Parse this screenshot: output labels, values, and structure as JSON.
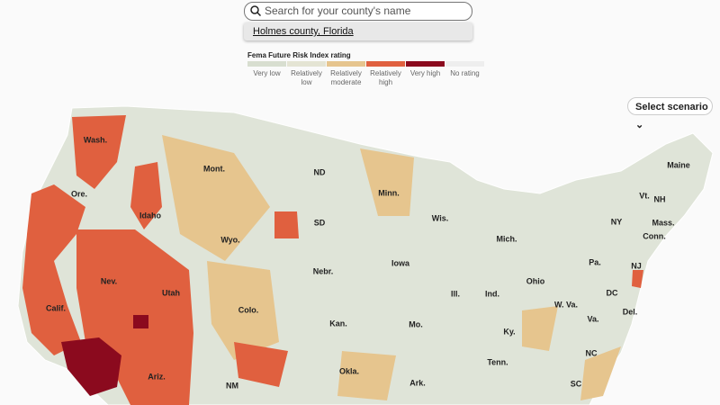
{
  "search": {
    "placeholder": "Search for your county's name",
    "suggestion": "Holmes county, Florida"
  },
  "legend": {
    "title": "Fema Future Risk Index rating",
    "items": [
      {
        "label": "Very low",
        "color": "#d8ded0"
      },
      {
        "label": "Relatively low",
        "color": "#e4e4d4"
      },
      {
        "label": "Relatively moderate",
        "color": "#e6c58e"
      },
      {
        "label": "Relatively high",
        "color": "#e0603f"
      },
      {
        "label": "Very high",
        "color": "#8b0a1e"
      },
      {
        "label": "No rating",
        "color": "#eeeeee"
      }
    ]
  },
  "scenario_button": {
    "label": "Select scenario"
  },
  "map": {
    "labels": [
      "Wash.",
      "Ore.",
      "Calif.",
      "Idaho",
      "Nev.",
      "Mont.",
      "Wyo.",
      "Utah",
      "Ariz.",
      "Colo.",
      "NM",
      "ND",
      "SD",
      "Nebr.",
      "Kan.",
      "Okla.",
      "Minn.",
      "Iowa",
      "Mo.",
      "Ark.",
      "Wis.",
      "Ill.",
      "Mich.",
      "Ind.",
      "Ohio",
      "Ky.",
      "Tenn.",
      "W. Va.",
      "Va.",
      "NC",
      "SC",
      "Pa.",
      "NY",
      "Vt.",
      "NH",
      "Maine",
      "Mass.",
      "Conn.",
      "NJ",
      "Del.",
      "DC"
    ]
  }
}
